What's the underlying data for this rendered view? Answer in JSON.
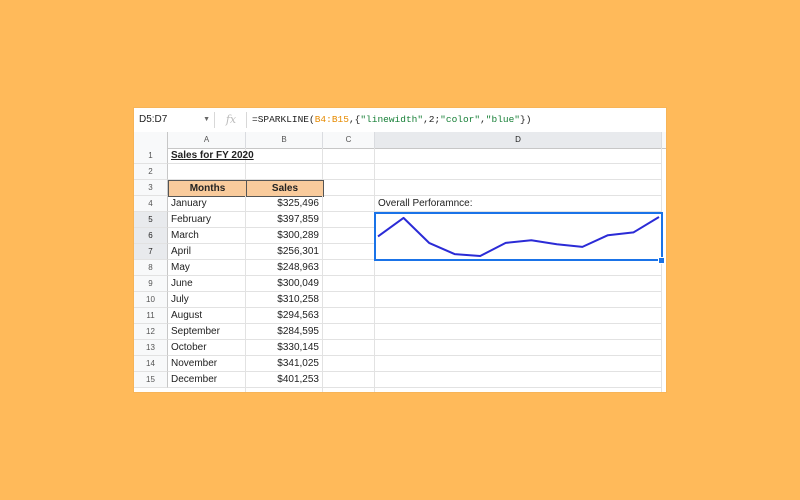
{
  "formula_bar": {
    "name_box": "D5:D7",
    "fx": "fx",
    "formula_prefix": "=SPARKLINE(",
    "formula_ref": "B4:B15",
    "formula_mid1": ",{",
    "formula_str1": "\"linewidth\"",
    "formula_mid2": ",2;",
    "formula_str2": "\"color\"",
    "formula_mid3": ",",
    "formula_str3": "\"blue\"",
    "formula_suffix": "})"
  },
  "columns": [
    "A",
    "B",
    "C",
    "D"
  ],
  "rows": [
    "1",
    "2",
    "3",
    "4",
    "5",
    "6",
    "7",
    "8",
    "9",
    "10",
    "11",
    "12",
    "13",
    "14",
    "15"
  ],
  "title": "Sales for FY 2020",
  "headers": {
    "months": "Months",
    "sales": "Sales"
  },
  "data": [
    {
      "month": "January",
      "sales": "$325,496"
    },
    {
      "month": "February",
      "sales": "$397,859"
    },
    {
      "month": "March",
      "sales": "$300,289"
    },
    {
      "month": "April",
      "sales": "$256,301"
    },
    {
      "month": "May",
      "sales": "$248,963"
    },
    {
      "month": "June",
      "sales": "$300,049"
    },
    {
      "month": "July",
      "sales": "$310,258"
    },
    {
      "month": "August",
      "sales": "$294,563"
    },
    {
      "month": "September",
      "sales": "$284,595"
    },
    {
      "month": "October",
      "sales": "$330,145"
    },
    {
      "month": "November",
      "sales": "$341,025"
    },
    {
      "month": "December",
      "sales": "$401,253"
    }
  ],
  "sparkline_label": "Overall Perforamnce:",
  "sparkline": {
    "values": [
      325496,
      397859,
      300289,
      256301,
      248963,
      300049,
      310258,
      294563,
      284595,
      330145,
      341025,
      401253
    ],
    "color": "#2b2bd6"
  }
}
